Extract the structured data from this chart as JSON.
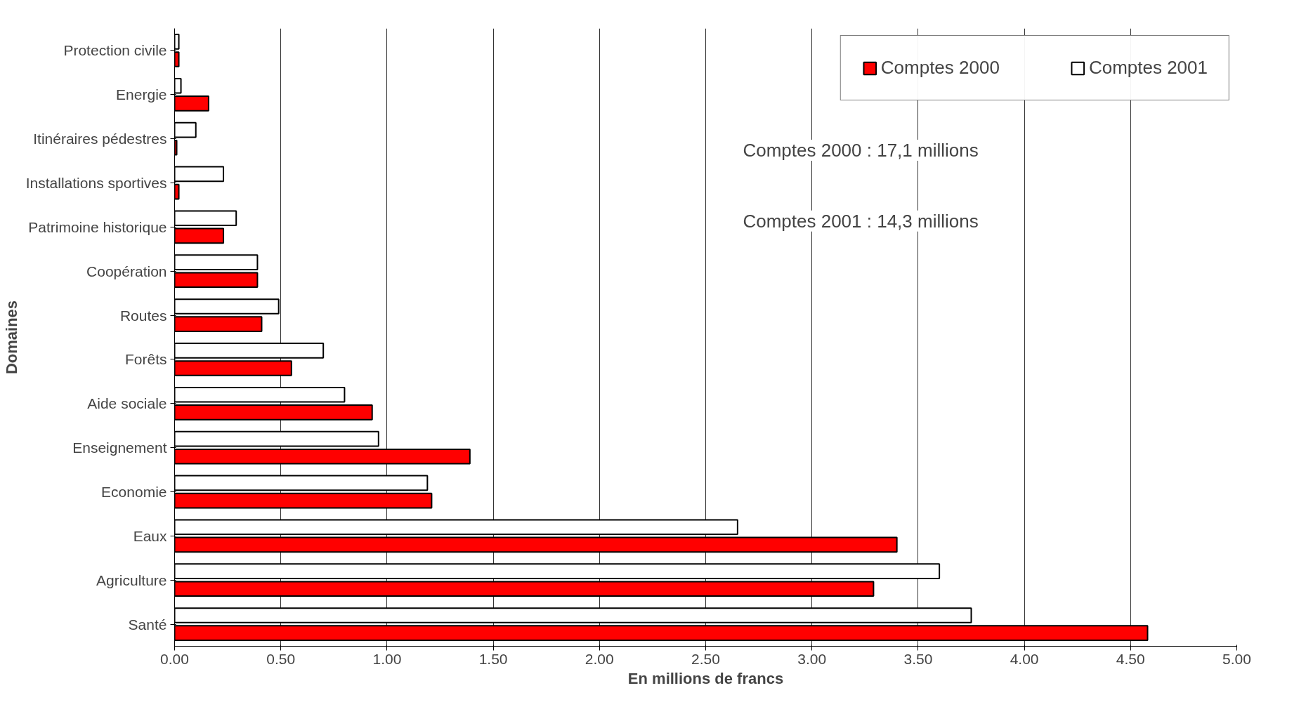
{
  "chart_data": {
    "type": "bar",
    "orientation": "horizontal",
    "categories": [
      "Protection civile",
      "Energie",
      "Itinéraires pédestres",
      "Installations sportives",
      "Patrimoine historique",
      "Coopération",
      "Routes",
      "Forêts",
      "Aide sociale",
      "Enseignement",
      "Economie",
      "Eaux",
      "Agriculture",
      "Santé"
    ],
    "series": [
      {
        "name": "Comptes 2000",
        "color": "#ff0000",
        "values": [
          0.02,
          0.16,
          0.01,
          0.02,
          0.23,
          0.39,
          0.41,
          0.55,
          0.93,
          1.39,
          1.21,
          3.4,
          3.29,
          4.58
        ]
      },
      {
        "name": "Comptes 2001",
        "color": "#ffffff",
        "values": [
          0.02,
          0.03,
          0.1,
          0.23,
          0.29,
          0.39,
          0.49,
          0.7,
          0.8,
          0.96,
          1.19,
          2.65,
          3.6,
          3.75
        ]
      }
    ],
    "xlim": [
      0,
      5
    ],
    "xticks": [
      {
        "value": 0,
        "label": "0.00"
      },
      {
        "value": 0.5,
        "label": "0.50"
      },
      {
        "value": 1,
        "label": "1.00"
      },
      {
        "value": 1.5,
        "label": "1.50"
      },
      {
        "value": 2,
        "label": "2.00"
      },
      {
        "value": 2.5,
        "label": "2.50"
      },
      {
        "value": 3,
        "label": "3.00"
      },
      {
        "value": 3.5,
        "label": "3.50"
      },
      {
        "value": 4,
        "label": "4.00"
      },
      {
        "value": 4.5,
        "label": "4.50"
      },
      {
        "value": 5,
        "label": "5.00"
      }
    ],
    "xlabel": "En millions de francs",
    "ylabel": "Domaines",
    "annotations": [
      "Comptes 2000  :  17,1 millions",
      "Comptes 2001  :  14,3 millions"
    ],
    "grid": "x",
    "legend": "top right"
  }
}
